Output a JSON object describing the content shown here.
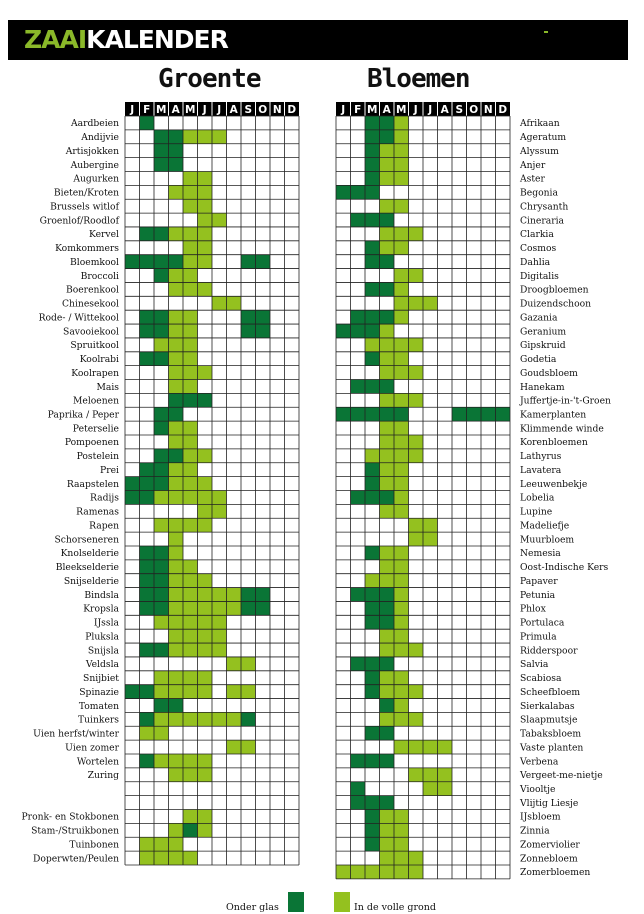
{
  "header": {
    "title_a": "ZAAI",
    "title_b": "KALENDER"
  },
  "sections": {
    "groente_title": "Groente",
    "bloemen_title": "Bloemen"
  },
  "months": [
    "J",
    "F",
    "M",
    "A",
    "M",
    "J",
    "J",
    "A",
    "S",
    "O",
    "N",
    "D"
  ],
  "colors": {
    "glas": "#0a7536",
    "grond": "#94c11f",
    "header": "#000000",
    "brand": "#8ab829"
  },
  "legend": {
    "glas_label": "Onder glas",
    "grond_label": "In de volle grond"
  },
  "groente": [
    {
      "name": "Aardbeien",
      "glas": [
        2
      ],
      "grond": []
    },
    {
      "name": "Andijvie",
      "glas": [
        3,
        4
      ],
      "grond": [
        5,
        6,
        7
      ]
    },
    {
      "name": "Artisjokken",
      "glas": [
        3,
        4
      ],
      "grond": []
    },
    {
      "name": "Aubergine",
      "glas": [
        3,
        4
      ],
      "grond": []
    },
    {
      "name": "Augurken",
      "glas": [],
      "grond": [
        5,
        6
      ]
    },
    {
      "name": "Bieten/Kroten",
      "glas": [],
      "grond": [
        4,
        5,
        6
      ]
    },
    {
      "name": "Brussels witlof",
      "glas": [],
      "grond": [
        5,
        6
      ]
    },
    {
      "name": "Groenlof/Roodlof",
      "glas": [],
      "grond": [
        6,
        7
      ]
    },
    {
      "name": "Kervel",
      "glas": [
        2,
        3
      ],
      "grond": [
        4,
        5,
        6
      ]
    },
    {
      "name": "Komkommers",
      "glas": [],
      "grond": [
        5,
        6
      ]
    },
    {
      "name": "Bloemkool",
      "glas": [
        1,
        2,
        3,
        4,
        9,
        10
      ],
      "grond": [
        5,
        6
      ]
    },
    {
      "name": "Broccoli",
      "glas": [
        3
      ],
      "grond": [
        4,
        5
      ]
    },
    {
      "name": "Boerenkool",
      "glas": [],
      "grond": [
        4,
        5,
        6
      ]
    },
    {
      "name": "Chinesekool",
      "glas": [],
      "grond": [
        7,
        8
      ]
    },
    {
      "name": "Rode- / Wittekool",
      "glas": [
        2,
        3,
        9,
        10
      ],
      "grond": [
        4,
        5
      ]
    },
    {
      "name": "Savooiekool",
      "glas": [
        2,
        3,
        9,
        10
      ],
      "grond": [
        4,
        5
      ]
    },
    {
      "name": "Spruitkool",
      "glas": [],
      "grond": [
        3,
        4,
        5
      ]
    },
    {
      "name": "Koolrabi",
      "glas": [
        2,
        3
      ],
      "grond": [
        4,
        5
      ]
    },
    {
      "name": "Koolrapen",
      "glas": [],
      "grond": [
        4,
        5,
        6
      ]
    },
    {
      "name": "Mais",
      "glas": [],
      "grond": [
        4,
        5
      ]
    },
    {
      "name": "Meloenen",
      "glas": [
        4,
        5,
        6
      ],
      "grond": []
    },
    {
      "name": "Paprika / Peper",
      "glas": [
        3,
        4
      ],
      "grond": []
    },
    {
      "name": "Peterselie",
      "glas": [
        3
      ],
      "grond": [
        4,
        5
      ]
    },
    {
      "name": "Pompoenen",
      "glas": [],
      "grond": [
        4,
        5
      ]
    },
    {
      "name": "Postelein",
      "glas": [
        3,
        4
      ],
      "grond": [
        5,
        6
      ]
    },
    {
      "name": "Prei",
      "glas": [
        2,
        3
      ],
      "grond": [
        4,
        5
      ]
    },
    {
      "name": "Raapstelen",
      "glas": [
        1,
        2,
        3
      ],
      "grond": [
        4,
        5,
        6
      ]
    },
    {
      "name": "Radijs",
      "glas": [
        1,
        2
      ],
      "grond": [
        3,
        4,
        5,
        6,
        7
      ]
    },
    {
      "name": "Ramenas",
      "glas": [],
      "grond": [
        6,
        7
      ]
    },
    {
      "name": "Rapen",
      "glas": [],
      "grond": [
        3,
        4,
        5,
        6
      ]
    },
    {
      "name": "Schorseneren",
      "glas": [],
      "grond": [
        4
      ]
    },
    {
      "name": "Knolselderie",
      "glas": [
        2,
        3
      ],
      "grond": [
        4
      ]
    },
    {
      "name": "Bleekselderie",
      "glas": [
        2,
        3
      ],
      "grond": [
        4,
        5
      ]
    },
    {
      "name": "Snijselderie",
      "glas": [
        2,
        3
      ],
      "grond": [
        4,
        5,
        6
      ]
    },
    {
      "name": "Bindsla",
      "glas": [
        2,
        3,
        9,
        10
      ],
      "grond": [
        4,
        5,
        6,
        7,
        8
      ]
    },
    {
      "name": "Kropsla",
      "glas": [
        2,
        3,
        9,
        10
      ],
      "grond": [
        4,
        5,
        6,
        7,
        8
      ]
    },
    {
      "name": "IJssla",
      "glas": [],
      "grond": [
        3,
        4,
        5,
        6,
        7
      ]
    },
    {
      "name": "Pluksla",
      "glas": [],
      "grond": [
        4,
        5,
        6,
        7
      ]
    },
    {
      "name": "Snijsla",
      "glas": [
        2,
        3
      ],
      "grond": [
        4,
        5,
        6,
        7
      ]
    },
    {
      "name": "Veldsla",
      "glas": [],
      "grond": [
        8,
        9
      ]
    },
    {
      "name": "Snijbiet",
      "glas": [],
      "grond": [
        3,
        4,
        5,
        6
      ]
    },
    {
      "name": "Spinazie",
      "glas": [
        1,
        2
      ],
      "grond": [
        3,
        4,
        5,
        6,
        8,
        9
      ]
    },
    {
      "name": "Tomaten",
      "glas": [
        3,
        4
      ],
      "grond": []
    },
    {
      "name": "Tuinkers",
      "glas": [
        2,
        9
      ],
      "grond": [
        3,
        4,
        5,
        6,
        7,
        8
      ]
    },
    {
      "name": "Uien herfst/winter",
      "glas": [],
      "grond": [
        2,
        3
      ]
    },
    {
      "name": "Uien zomer",
      "glas": [],
      "grond": [
        8,
        9
      ]
    },
    {
      "name": "Wortelen",
      "glas": [
        2
      ],
      "grond": [
        3,
        4,
        5,
        6
      ]
    },
    {
      "name": "Zuring",
      "glas": [],
      "grond": [
        4,
        5,
        6
      ]
    },
    {
      "name": "",
      "glas": [],
      "grond": []
    },
    {
      "name": "",
      "glas": [],
      "grond": []
    },
    {
      "name": "Pronk- en Stokbonen",
      "glas": [],
      "grond": [
        5,
        6
      ]
    },
    {
      "name": "Stam-/Struikbonen",
      "glas": [
        5
      ],
      "grond": [
        4,
        6
      ]
    },
    {
      "name": "Tuinbonen",
      "glas": [],
      "grond": [
        2,
        3,
        4
      ]
    },
    {
      "name": "Doperwten/Peulen",
      "glas": [],
      "grond": [
        2,
        3,
        4,
        5
      ]
    }
  ],
  "bloemen": [
    {
      "name": "Afrikaan",
      "glas": [
        3,
        4
      ],
      "grond": [
        5
      ]
    },
    {
      "name": "Ageratum",
      "glas": [
        3,
        4
      ],
      "grond": [
        5
      ]
    },
    {
      "name": "Alyssum",
      "glas": [
        3
      ],
      "grond": [
        4,
        5
      ]
    },
    {
      "name": "Anjer",
      "glas": [
        3
      ],
      "grond": [
        4,
        5
      ]
    },
    {
      "name": "Aster",
      "glas": [
        3
      ],
      "grond": [
        4,
        5
      ]
    },
    {
      "name": "Begonia",
      "glas": [
        1,
        2,
        3
      ],
      "grond": []
    },
    {
      "name": "Chrysanth",
      "glas": [],
      "grond": [
        4,
        5
      ]
    },
    {
      "name": "Cineraria",
      "glas": [
        2,
        3,
        4
      ],
      "grond": []
    },
    {
      "name": "Clarkia",
      "glas": [],
      "grond": [
        4,
        5,
        6
      ]
    },
    {
      "name": "Cosmos",
      "glas": [
        3
      ],
      "grond": [
        4,
        5
      ]
    },
    {
      "name": "Dahlia",
      "glas": [
        3,
        4
      ],
      "grond": []
    },
    {
      "name": "Digitalis",
      "glas": [],
      "grond": [
        5,
        6
      ]
    },
    {
      "name": "Droogbloemen",
      "glas": [
        3,
        4
      ],
      "grond": [
        5
      ]
    },
    {
      "name": "Duizendschoon",
      "glas": [],
      "grond": [
        5,
        6,
        7
      ]
    },
    {
      "name": "Gazania",
      "glas": [
        2,
        3,
        4
      ],
      "grond": [
        5
      ]
    },
    {
      "name": "Geranium",
      "glas": [
        1,
        2,
        3
      ],
      "grond": [
        4
      ]
    },
    {
      "name": "Gipskruid",
      "glas": [],
      "grond": [
        3,
        4,
        5,
        6
      ]
    },
    {
      "name": "Godetia",
      "glas": [
        3
      ],
      "grond": [
        4,
        5
      ]
    },
    {
      "name": "Goudsbloem",
      "glas": [],
      "grond": [
        4,
        5,
        6
      ]
    },
    {
      "name": "Hanekam",
      "glas": [
        2,
        3,
        4
      ],
      "grond": []
    },
    {
      "name": "Juffertje-in-'t-Groen",
      "glas": [],
      "grond": [
        4,
        5,
        6
      ]
    },
    {
      "name": "Kamerplanten",
      "glas": [
        1,
        2,
        3,
        4,
        5,
        9,
        10,
        11,
        12
      ],
      "grond": []
    },
    {
      "name": "Klimmende winde",
      "glas": [],
      "grond": [
        4,
        5
      ]
    },
    {
      "name": "Korenbloemen",
      "glas": [],
      "grond": [
        4,
        5,
        6
      ]
    },
    {
      "name": "Lathyrus",
      "glas": [],
      "grond": [
        3,
        4,
        5,
        6
      ]
    },
    {
      "name": "Lavatera",
      "glas": [
        3
      ],
      "grond": [
        4,
        5
      ]
    },
    {
      "name": "Leeuwenbekje",
      "glas": [
        3
      ],
      "grond": [
        4,
        5
      ]
    },
    {
      "name": "Lobelia",
      "glas": [
        2,
        3,
        4
      ],
      "grond": [
        5
      ]
    },
    {
      "name": "Lupine",
      "glas": [],
      "grond": [
        4,
        5
      ]
    },
    {
      "name": "Madeliefje",
      "glas": [],
      "grond": [
        6,
        7
      ]
    },
    {
      "name": "Muurbloem",
      "glas": [],
      "grond": [
        6,
        7
      ]
    },
    {
      "name": "Nemesia",
      "glas": [
        3
      ],
      "grond": [
        4,
        5
      ]
    },
    {
      "name": "Oost-Indische Kers",
      "glas": [],
      "grond": [
        4,
        5
      ]
    },
    {
      "name": "Papaver",
      "glas": [],
      "grond": [
        3,
        4,
        5
      ]
    },
    {
      "name": "Petunia",
      "glas": [
        2,
        3,
        4
      ],
      "grond": [
        5
      ]
    },
    {
      "name": "Phlox",
      "glas": [
        3,
        4
      ],
      "grond": [
        5
      ]
    },
    {
      "name": "Portulaca",
      "glas": [
        3,
        4
      ],
      "grond": [
        5
      ]
    },
    {
      "name": "Primula",
      "glas": [],
      "grond": [
        4,
        5
      ]
    },
    {
      "name": "Ridderspoor",
      "glas": [],
      "grond": [
        4,
        5,
        6
      ]
    },
    {
      "name": "Salvia",
      "glas": [
        2,
        3,
        4
      ],
      "grond": []
    },
    {
      "name": "Scabiosa",
      "glas": [
        3
      ],
      "grond": [
        4,
        5
      ]
    },
    {
      "name": "Scheefbloem",
      "glas": [
        3
      ],
      "grond": [
        4,
        5,
        6
      ]
    },
    {
      "name": "Sierkalabas",
      "glas": [
        4
      ],
      "grond": [
        5
      ]
    },
    {
      "name": "Slaapmutsje",
      "glas": [],
      "grond": [
        4,
        5,
        6
      ]
    },
    {
      "name": "Tabaksbloem",
      "glas": [
        3,
        4
      ],
      "grond": []
    },
    {
      "name": "Vaste planten",
      "glas": [],
      "grond": [
        5,
        6,
        7,
        8
      ]
    },
    {
      "name": "Verbena",
      "glas": [
        2,
        3,
        4
      ],
      "grond": []
    },
    {
      "name": "Vergeet-me-nietje",
      "glas": [],
      "grond": [
        6,
        7,
        8
      ]
    },
    {
      "name": "Viooltje",
      "glas": [
        2
      ],
      "grond": [
        7,
        8
      ]
    },
    {
      "name": "Vlijtig Liesje",
      "glas": [
        2,
        3,
        4
      ],
      "grond": []
    },
    {
      "name": "IJsbloem",
      "glas": [
        3
      ],
      "grond": [
        4,
        5
      ]
    },
    {
      "name": "Zinnia",
      "glas": [
        3
      ],
      "grond": [
        4,
        5
      ]
    },
    {
      "name": "Zomerviolier",
      "glas": [
        3
      ],
      "grond": [
        4,
        5
      ]
    },
    {
      "name": "Zonnebloem",
      "glas": [],
      "grond": [
        4,
        5,
        6
      ]
    },
    {
      "name": "Zomerbloemen",
      "glas": [],
      "grond": [
        1,
        2,
        3,
        4,
        5,
        6
      ]
    }
  ]
}
